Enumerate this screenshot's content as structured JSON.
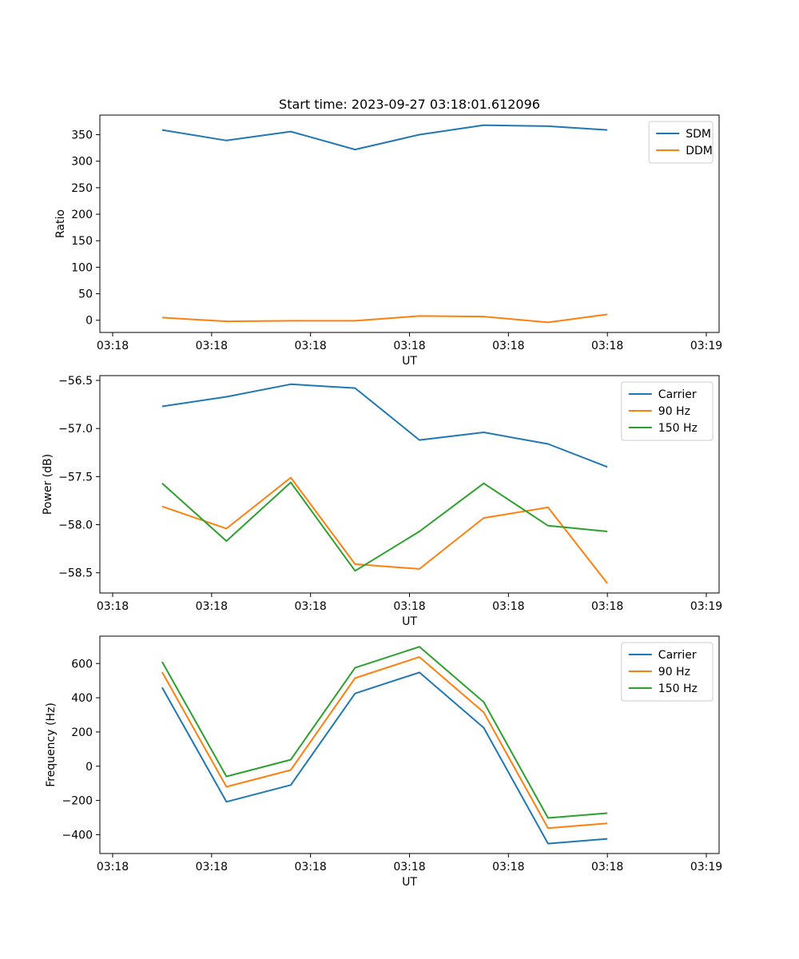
{
  "colors": {
    "blue": "#1f77b4",
    "orange": "#ff7f0e",
    "green": "#2ca02c"
  },
  "chart_data": [
    {
      "type": "line",
      "title": "Start time: 2023-09-27 03:18:01.612096",
      "xlabel": "UT",
      "ylabel": "Ratio",
      "x": [
        0.5,
        1.15,
        1.8,
        2.45,
        3.1,
        3.75,
        4.4,
        5.0
      ],
      "xlim": [
        0,
        6
      ],
      "xticks": [
        0,
        1,
        2,
        3,
        4,
        5,
        6
      ],
      "xtick_labels": [
        "03:18",
        "03:18",
        "03:18",
        "03:18",
        "03:18",
        "03:18",
        "03:19"
      ],
      "ylim": [
        -23,
        387
      ],
      "yticks": [
        0,
        50,
        100,
        150,
        200,
        250,
        300,
        350
      ],
      "ytick_labels": [
        "0",
        "50",
        "100",
        "150",
        "200",
        "250",
        "300",
        "350"
      ],
      "legend_position": "top-right",
      "series": [
        {
          "name": "SDM",
          "color_key": "blue",
          "values": [
            359,
            339,
            356,
            322,
            350,
            368,
            366,
            359
          ]
        },
        {
          "name": "DDM",
          "color_key": "orange",
          "values": [
            5,
            -2,
            -1,
            -1,
            8,
            7,
            -4,
            11
          ]
        }
      ]
    },
    {
      "type": "line",
      "title": "",
      "xlabel": "UT",
      "ylabel": "Power (dB)",
      "x": [
        0.5,
        1.15,
        1.8,
        2.45,
        3.1,
        3.75,
        4.4,
        5.0
      ],
      "xlim": [
        0,
        6
      ],
      "xticks": [
        0,
        1,
        2,
        3,
        4,
        5,
        6
      ],
      "xtick_labels": [
        "03:18",
        "03:18",
        "03:18",
        "03:18",
        "03:18",
        "03:18",
        "03:19"
      ],
      "ylim": [
        -58.71,
        -56.45
      ],
      "yticks": [
        -58.5,
        -58.0,
        -57.5,
        -57.0,
        -56.5
      ],
      "ytick_labels": [
        "−58.5",
        "−58.0",
        "−57.5",
        "−57.0",
        "−56.5"
      ],
      "legend_position": "top-right",
      "series": [
        {
          "name": "Carrier",
          "color_key": "blue",
          "values": [
            -56.77,
            -56.67,
            -56.54,
            -56.58,
            -57.12,
            -57.04,
            -57.16,
            -57.4
          ]
        },
        {
          "name": "90 Hz",
          "color_key": "orange",
          "values": [
            -57.81,
            -58.04,
            -57.51,
            -58.41,
            -58.46,
            -57.93,
            -57.82,
            -58.61
          ]
        },
        {
          "name": "150 Hz",
          "color_key": "green",
          "values": [
            -57.57,
            -58.17,
            -57.56,
            -58.48,
            -58.07,
            -57.57,
            -58.01,
            -58.07
          ]
        }
      ]
    },
    {
      "type": "line",
      "title": "",
      "xlabel": "UT",
      "ylabel": "Frequency (Hz)",
      "x": [
        0.5,
        1.15,
        1.8,
        2.45,
        3.1,
        3.75,
        4.4,
        5.0
      ],
      "xlim": [
        0,
        6
      ],
      "xticks": [
        0,
        1,
        2,
        3,
        4,
        5,
        6
      ],
      "xtick_labels": [
        "03:18",
        "03:18",
        "03:18",
        "03:18",
        "03:18",
        "03:18",
        "03:19"
      ],
      "ylim": [
        -510,
        760
      ],
      "yticks": [
        -400,
        -200,
        0,
        200,
        400,
        600
      ],
      "ytick_labels": [
        "−400",
        "−200",
        "0",
        "200",
        "400",
        "600"
      ],
      "legend_position": "top-right",
      "series": [
        {
          "name": "Carrier",
          "color_key": "blue",
          "values": [
            460,
            -208,
            -110,
            425,
            548,
            225,
            -452,
            -424
          ]
        },
        {
          "name": "90 Hz",
          "color_key": "orange",
          "values": [
            550,
            -120,
            -22,
            515,
            638,
            315,
            -362,
            -334
          ]
        },
        {
          "name": "150 Hz",
          "color_key": "green",
          "values": [
            610,
            -60,
            38,
            575,
            698,
            375,
            -302,
            -274
          ]
        }
      ]
    }
  ]
}
